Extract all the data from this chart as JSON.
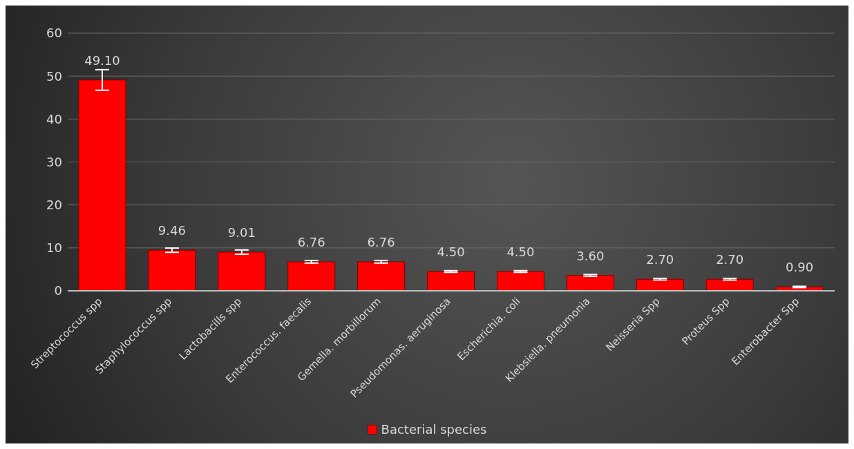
{
  "chart_data": {
    "type": "bar",
    "categories": [
      "Streptococcus spp",
      "Staphylococcus spp",
      "Lactobacills spp",
      "Enterococcus. faecalis",
      "Gemella. morbillorum",
      "Pseudomonas. aeruginosa",
      "Escherichia. coli",
      "Klebsiella. pneumonia",
      "Neisseria Spp",
      "Proteus Spp",
      "Enterobacter Spp"
    ],
    "series": [
      {
        "name": "Bacterial species",
        "color": "#ff0000",
        "values": [
          49.1,
          9.46,
          9.01,
          6.76,
          6.76,
          4.5,
          4.5,
          3.6,
          2.7,
          2.7,
          0.9
        ],
        "errors": [
          2.4,
          0.5,
          0.5,
          0.3,
          0.3,
          0.2,
          0.2,
          0.2,
          0.2,
          0.2,
          0.15
        ],
        "value_labels": [
          "49.10",
          "9.46",
          "9.01",
          "6.76",
          "6.76",
          "4.50",
          "4.50",
          "3.60",
          "2.70",
          "2.70",
          "0.90"
        ]
      }
    ],
    "ylim": [
      0,
      60
    ],
    "yticks": [
      0,
      10,
      20,
      30,
      40,
      50,
      60
    ],
    "grid": "y",
    "legend": "bottom"
  }
}
